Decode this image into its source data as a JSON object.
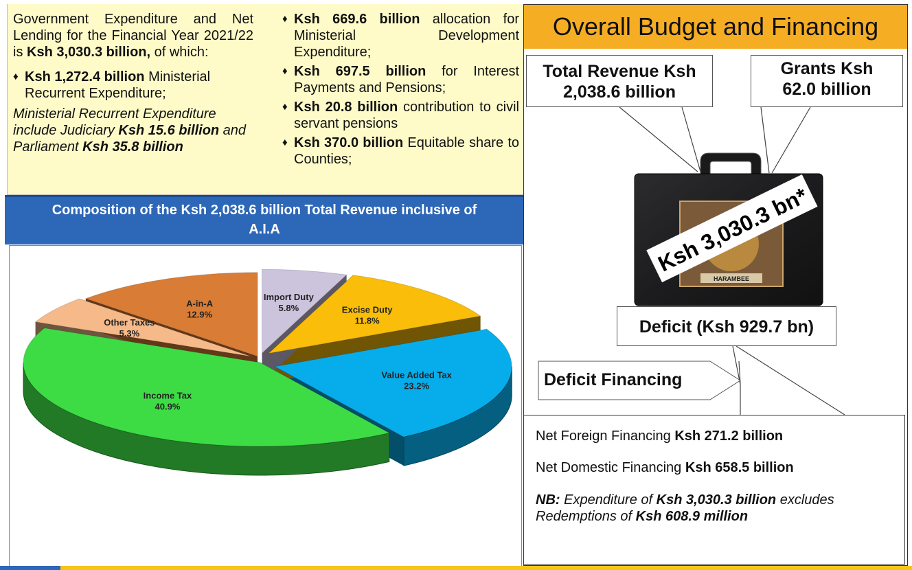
{
  "left_text": {
    "col1_para": [
      "Government Expenditure and Net Lending for the Financial Year 2021/22 is ",
      "Ksh 3,030.3 billion,",
      " of which:"
    ],
    "bullet1": [
      "Ksh 1,272.4 billion",
      " Ministerial Recurrent Expenditure;"
    ],
    "italic_note": [
      "Ministerial Recurrent Expenditure include Judiciary ",
      "Ksh 15.6 billion",
      " and Parliament ",
      "Ksh 35.8 billion"
    ],
    "bullet2": [
      "Ksh 669.6 billion",
      " allocation for Ministerial Development Expenditure;"
    ],
    "bullet3": [
      "Ksh 697.5 billion",
      " for Interest Payments and Pensions;"
    ],
    "bullet4": [
      "Ksh 20.8 billion",
      " contribution to civil servant pensions"
    ],
    "bullet5": [
      "Ksh 370.0 billion",
      " Equitable share to Counties;"
    ]
  },
  "banner": {
    "line1": "Composition of the Ksh 2,038.6 billion Total Revenue inclusive of",
    "line2": "A.I.A"
  },
  "chart_data": {
    "type": "pie",
    "categories": [
      "Import Duty",
      "Excise Duty",
      "Value Added Tax",
      "Income Tax",
      "Other Taxes",
      "A-in-A"
    ],
    "values": [
      5.8,
      11.8,
      23.2,
      40.9,
      5.3,
      12.9
    ],
    "labels": [
      "5.8%",
      "11.8%",
      "23.2%",
      "40.9%",
      "5.3%",
      "12.9%"
    ],
    "colors": [
      "#ccc3dc",
      "#f9bd0a",
      "#07adea",
      "#3ddc45",
      "#f6ba8a",
      "#d97c35"
    ],
    "title": "Composition of the Ksh 2,038.6 billion Total Revenue inclusive of A.I.A"
  },
  "right": {
    "title": "Overall Budget and Financing",
    "total_revenue": [
      "Total Revenue Ksh",
      "2,038.6 billion"
    ],
    "grants": [
      "Grants Ksh",
      "62.0 billion"
    ],
    "briefcase_label": "Ksh 3,030.3 bn*",
    "briefcase_motto": "HARAMBEE",
    "deficit": "Deficit (Ksh 929.7 bn)",
    "deficit_financing": "Deficit Financing",
    "net_foreign": [
      "Net Foreign Financing ",
      "Ksh 271.2 billion"
    ],
    "net_domestic": [
      "Net Domestic Financing ",
      "Ksh 658.5 billion"
    ],
    "nb": [
      "NB:",
      " Expenditure of ",
      "Ksh 3,030.3 billion",
      " excludes",
      "Redemptions of ",
      "Ksh 608.9 million"
    ]
  },
  "colors": {
    "banner_blue": "#2d67b8",
    "title_orange": "#f5ad24",
    "panel_yellow": "#fffbc9",
    "accent_yellow": "#f5c518"
  }
}
